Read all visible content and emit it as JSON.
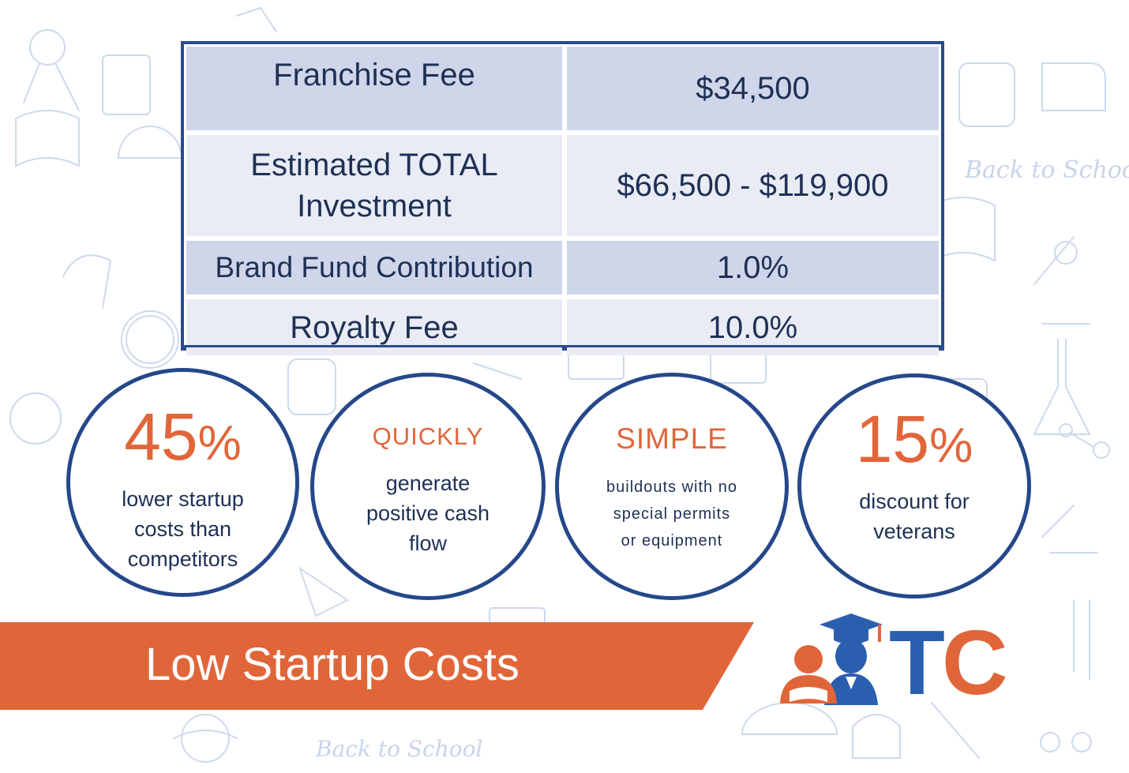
{
  "table": {
    "rows": [
      {
        "label": "Franchise Fee",
        "value": "$34,500"
      },
      {
        "label": "Estimated TOTAL Investment",
        "value": "$66,500 - $119,900"
      },
      {
        "label": "Brand Fund Contribution",
        "value": "1.0%"
      },
      {
        "label": "Royalty Fee",
        "value": "10.0%"
      }
    ]
  },
  "highlights": [
    {
      "number": "45",
      "symbol": "%",
      "lines": [
        "lower startup",
        "costs than",
        "competitors"
      ]
    },
    {
      "heading": "QUICKLY",
      "lines": [
        "generate",
        "positive cash",
        "flow"
      ]
    },
    {
      "heading": "SIMPLE",
      "lines": [
        "buildouts with no",
        "special permits",
        "or equipment"
      ]
    },
    {
      "number": "15",
      "symbol": "%",
      "lines": [
        "discount for",
        "veterans"
      ]
    }
  ],
  "banner": {
    "title": "Low Startup Costs"
  },
  "logo": {
    "letter_t": "T",
    "letter_c": "C"
  },
  "background": {
    "doodle_text": "Back to School"
  },
  "colors": {
    "navy": "#25488a",
    "orange": "#e0663a",
    "row_dark": "#d0d6ea",
    "row_light": "#e9ecf5"
  },
  "icons": [
    "graduation-cap-icon",
    "student-icon",
    "teacher-icon"
  ]
}
